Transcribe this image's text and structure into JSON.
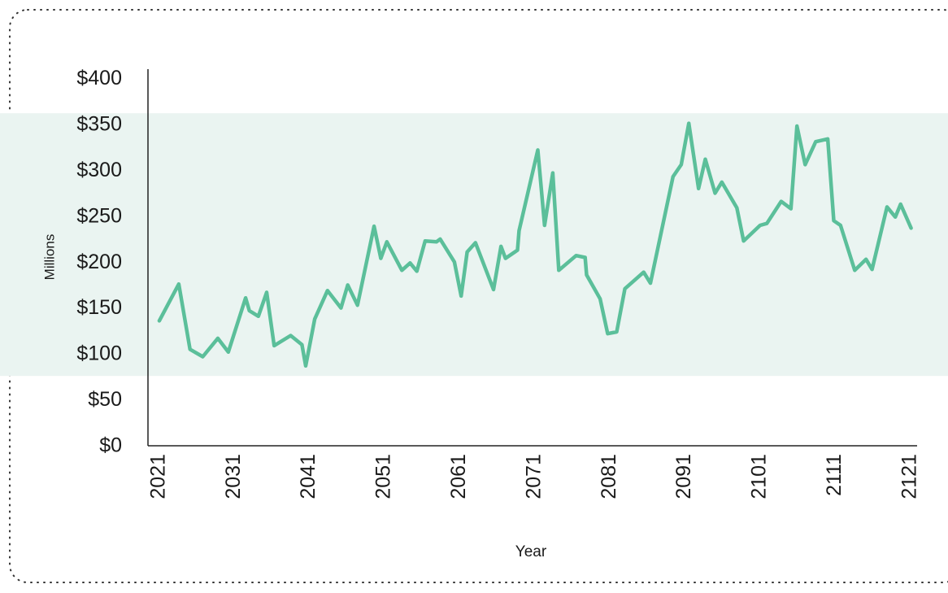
{
  "chart_data": {
    "type": "line",
    "x_label": "Year",
    "y_label": "Millions",
    "shaded_range": [
      76,
      362
    ],
    "shaded_color": "#eaf4f1",
    "xlim": [
      2019.5,
      2121.9
    ],
    "xticks": [
      2021,
      2031,
      2041,
      2051,
      2061,
      2071,
      2081,
      2091,
      2101,
      2111,
      2121
    ],
    "ylim": [
      0,
      410
    ],
    "yticks": [
      {
        "value": 0,
        "label": "$0"
      },
      {
        "value": 50,
        "label": "$50"
      },
      {
        "value": 100,
        "label": "$100"
      },
      {
        "value": 150,
        "label": "$150"
      },
      {
        "value": 200,
        "label": "$200"
      },
      {
        "value": 250,
        "label": "$250"
      },
      {
        "value": 300,
        "label": "$300"
      },
      {
        "value": 350,
        "label": "$350"
      },
      {
        "value": 400,
        "label": "$400"
      }
    ],
    "grid": false,
    "series": [
      {
        "color": "#5bbf9a",
        "x": [
          2021,
          2023.6,
          2025.1,
          2026.8,
          2028.8,
          2030.2,
          2032.5,
          2033.0,
          2034.2,
          2035.3,
          2036.3,
          2038.5,
          2040,
          2040.5,
          2041.7,
          2043.4,
          2045.2,
          2046.1,
          2047.4,
          2049.6,
          2050.5,
          2051.3,
          2053.3,
          2054.4,
          2055.3,
          2056.4,
          2057.9,
          2058.4,
          2060.3,
          2061.2,
          2062,
          2063.1,
          2065.5,
          2066.5,
          2067.1,
          2068.7,
          2068.9,
          2071.4,
          2072.3,
          2073.4,
          2074.2,
          2076.5,
          2077.7,
          2077.9,
          2079.7,
          2080.7,
          2081.9,
          2083,
          2085.5,
          2086.4,
          2089.4,
          2090.5,
          2091.5,
          2092.8,
          2093.7,
          2095,
          2095.9,
          2097.9,
          2098.8,
          2101,
          2101.9,
          2103.8,
          2105.1,
          2105.9,
          2107,
          2108.4,
          2110,
          2110.8,
          2111.7,
          2113.6,
          2115.1,
          2115.9,
          2117.9,
          2119,
          2119.7,
          2121.1
        ],
        "values": [
          136,
          176,
          105,
          97,
          117,
          102,
          161,
          147,
          141,
          167,
          109,
          120,
          110,
          87,
          138,
          169,
          150,
          175,
          153,
          239,
          204,
          222,
          191,
          199,
          190,
          223,
          222,
          225,
          200,
          163,
          211,
          221,
          170,
          217,
          204,
          213,
          234,
          322,
          240,
          297,
          191,
          207,
          205,
          186,
          160,
          122,
          124,
          171,
          189,
          177,
          293,
          306,
          351,
          280,
          312,
          275,
          287,
          259,
          223,
          240,
          242,
          266,
          258,
          348,
          306,
          331,
          334,
          245,
          240,
          191,
          203,
          192,
          260,
          249,
          263,
          237
        ]
      }
    ]
  }
}
